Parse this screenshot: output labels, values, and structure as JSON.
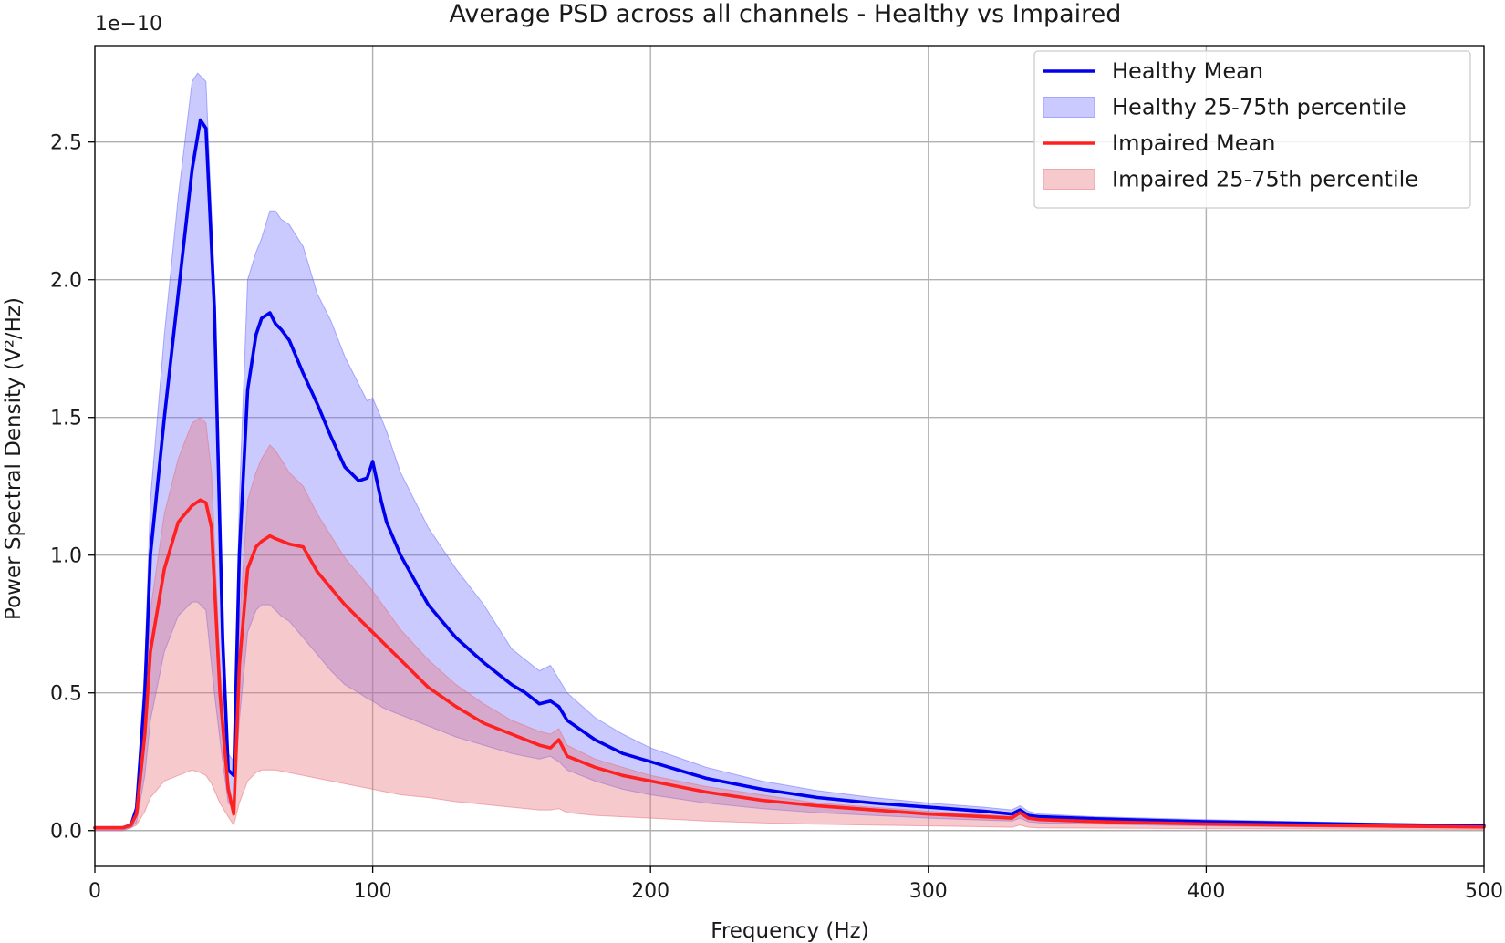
{
  "chart_data": {
    "type": "line",
    "title": "Average PSD across all channels - Healthy vs Impaired",
    "xlabel": "Frequency (Hz)",
    "ylabel": "Power Spectral Density (V²/Hz)",
    "y_offset_label": "1e−10",
    "xlim": [
      0,
      500
    ],
    "ylim": [
      -0.13,
      2.85
    ],
    "x_ticks": [
      0,
      100,
      200,
      300,
      400,
      500
    ],
    "x_tick_labels": [
      "0",
      "100",
      "200",
      "300",
      "400",
      "500"
    ],
    "y_ticks": [
      0.0,
      0.5,
      1.0,
      1.5,
      2.0,
      2.5
    ],
    "y_tick_labels": [
      "0.0",
      "0.5",
      "1.0",
      "1.5",
      "2.0",
      "2.5"
    ],
    "grid": true,
    "legend_position": "top-right",
    "series": [
      {
        "name": "Healthy Mean",
        "color": "#0000ee",
        "x": [
          0,
          10,
          13,
          15,
          18,
          20,
          25,
          30,
          35,
          38,
          40,
          43,
          46,
          48,
          50,
          52,
          55,
          58,
          60,
          63,
          65,
          67,
          70,
          75,
          80,
          85,
          90,
          95,
          98,
          100,
          103,
          105,
          110,
          120,
          130,
          140,
          150,
          155,
          160,
          164,
          167,
          170,
          180,
          190,
          200,
          220,
          240,
          260,
          280,
          300,
          320,
          330,
          333,
          336,
          340,
          360,
          380,
          400,
          430,
          460,
          500
        ],
        "y": [
          0.01,
          0.01,
          0.02,
          0.08,
          0.5,
          1.0,
          1.5,
          1.95,
          2.4,
          2.58,
          2.55,
          1.9,
          0.7,
          0.22,
          0.2,
          1.0,
          1.6,
          1.8,
          1.86,
          1.88,
          1.84,
          1.82,
          1.78,
          1.66,
          1.55,
          1.43,
          1.32,
          1.27,
          1.28,
          1.34,
          1.2,
          1.12,
          1.0,
          0.82,
          0.7,
          0.61,
          0.53,
          0.5,
          0.46,
          0.47,
          0.45,
          0.4,
          0.33,
          0.28,
          0.25,
          0.19,
          0.15,
          0.12,
          0.1,
          0.085,
          0.07,
          0.06,
          0.075,
          0.055,
          0.05,
          0.043,
          0.037,
          0.032,
          0.027,
          0.022,
          0.017
        ]
      },
      {
        "name": "Healthy 25-75th percentile",
        "color": "#6666ff",
        "opacity": 0.35,
        "x": [
          0,
          10,
          13,
          15,
          18,
          20,
          25,
          30,
          35,
          37,
          40,
          43,
          46,
          48,
          50,
          52,
          55,
          58,
          60,
          63,
          65,
          67,
          70,
          75,
          80,
          85,
          90,
          95,
          98,
          100,
          103,
          105,
          110,
          120,
          130,
          140,
          150,
          155,
          160,
          164,
          167,
          170,
          180,
          190,
          200,
          220,
          240,
          260,
          280,
          300,
          320,
          330,
          333,
          336,
          340,
          360,
          380,
          400,
          430,
          460,
          500
        ],
        "upper": [
          0.01,
          0.01,
          0.03,
          0.1,
          0.6,
          1.2,
          1.8,
          2.3,
          2.72,
          2.75,
          2.72,
          2.0,
          0.8,
          0.28,
          0.25,
          1.2,
          2.0,
          2.1,
          2.15,
          2.25,
          2.25,
          2.22,
          2.2,
          2.12,
          1.95,
          1.85,
          1.72,
          1.62,
          1.56,
          1.57,
          1.5,
          1.45,
          1.3,
          1.1,
          0.95,
          0.82,
          0.66,
          0.62,
          0.58,
          0.6,
          0.55,
          0.5,
          0.41,
          0.35,
          0.3,
          0.23,
          0.18,
          0.145,
          0.12,
          0.1,
          0.085,
          0.075,
          0.09,
          0.07,
          0.06,
          0.05,
          0.045,
          0.04,
          0.033,
          0.027,
          0.02
        ],
        "lower": [
          0.0,
          0.0,
          0.01,
          0.03,
          0.2,
          0.4,
          0.65,
          0.78,
          0.83,
          0.83,
          0.8,
          0.5,
          0.25,
          0.1,
          0.08,
          0.4,
          0.72,
          0.8,
          0.82,
          0.82,
          0.8,
          0.78,
          0.76,
          0.7,
          0.64,
          0.58,
          0.53,
          0.5,
          0.48,
          0.47,
          0.45,
          0.44,
          0.42,
          0.38,
          0.34,
          0.31,
          0.28,
          0.27,
          0.26,
          0.27,
          0.25,
          0.22,
          0.18,
          0.15,
          0.13,
          0.1,
          0.08,
          0.065,
          0.055,
          0.045,
          0.038,
          0.035,
          0.045,
          0.032,
          0.028,
          0.024,
          0.02,
          0.017,
          0.014,
          0.012,
          0.01
        ]
      },
      {
        "name": "Impaired Mean",
        "color": "#ff2020",
        "x": [
          0,
          10,
          13,
          15,
          18,
          20,
          25,
          30,
          35,
          38,
          40,
          42,
          45,
          48,
          50,
          52,
          55,
          58,
          60,
          63,
          65,
          70,
          75,
          80,
          90,
          100,
          110,
          120,
          130,
          140,
          150,
          160,
          164,
          167,
          170,
          180,
          190,
          200,
          220,
          240,
          260,
          280,
          300,
          320,
          330,
          333,
          336,
          340,
          360,
          380,
          400,
          430,
          460,
          500
        ],
        "y": [
          0.01,
          0.01,
          0.02,
          0.06,
          0.35,
          0.65,
          0.95,
          1.12,
          1.18,
          1.2,
          1.19,
          1.1,
          0.5,
          0.15,
          0.06,
          0.6,
          0.95,
          1.03,
          1.05,
          1.07,
          1.06,
          1.04,
          1.03,
          0.94,
          0.82,
          0.72,
          0.62,
          0.52,
          0.45,
          0.39,
          0.35,
          0.31,
          0.3,
          0.33,
          0.27,
          0.23,
          0.2,
          0.18,
          0.14,
          0.11,
          0.09,
          0.075,
          0.06,
          0.05,
          0.045,
          0.065,
          0.045,
          0.04,
          0.033,
          0.028,
          0.024,
          0.02,
          0.017,
          0.013
        ]
      },
      {
        "name": "Impaired 25-75th percentile",
        "color": "#e8707a",
        "opacity": 0.38,
        "x": [
          0,
          10,
          13,
          15,
          18,
          20,
          25,
          30,
          35,
          38,
          40,
          42,
          45,
          48,
          50,
          52,
          55,
          58,
          60,
          63,
          65,
          70,
          75,
          80,
          90,
          100,
          110,
          120,
          130,
          140,
          150,
          160,
          164,
          167,
          170,
          180,
          190,
          200,
          220,
          240,
          260,
          280,
          300,
          320,
          330,
          333,
          336,
          340,
          360,
          380,
          400,
          430,
          460,
          500
        ],
        "upper": [
          0.01,
          0.01,
          0.03,
          0.08,
          0.45,
          0.8,
          1.15,
          1.35,
          1.48,
          1.5,
          1.48,
          1.3,
          0.6,
          0.18,
          0.08,
          0.75,
          1.2,
          1.3,
          1.35,
          1.4,
          1.38,
          1.3,
          1.25,
          1.15,
          0.99,
          0.87,
          0.73,
          0.62,
          0.53,
          0.46,
          0.4,
          0.36,
          0.35,
          0.37,
          0.31,
          0.26,
          0.23,
          0.2,
          0.16,
          0.13,
          0.1,
          0.085,
          0.07,
          0.058,
          0.052,
          0.072,
          0.05,
          0.045,
          0.037,
          0.031,
          0.027,
          0.022,
          0.018,
          0.014
        ],
        "lower": [
          0.0,
          0.0,
          0.01,
          0.02,
          0.07,
          0.12,
          0.18,
          0.2,
          0.22,
          0.21,
          0.2,
          0.17,
          0.1,
          0.05,
          0.02,
          0.1,
          0.18,
          0.21,
          0.22,
          0.22,
          0.22,
          0.21,
          0.2,
          0.19,
          0.17,
          0.15,
          0.13,
          0.12,
          0.105,
          0.095,
          0.085,
          0.075,
          0.075,
          0.08,
          0.065,
          0.055,
          0.05,
          0.045,
          0.035,
          0.028,
          0.023,
          0.02,
          0.017,
          0.014,
          0.012,
          0.02,
          0.012,
          0.01,
          0.009,
          0.008,
          0.007,
          0.006,
          0.005,
          0.004
        ]
      }
    ]
  }
}
